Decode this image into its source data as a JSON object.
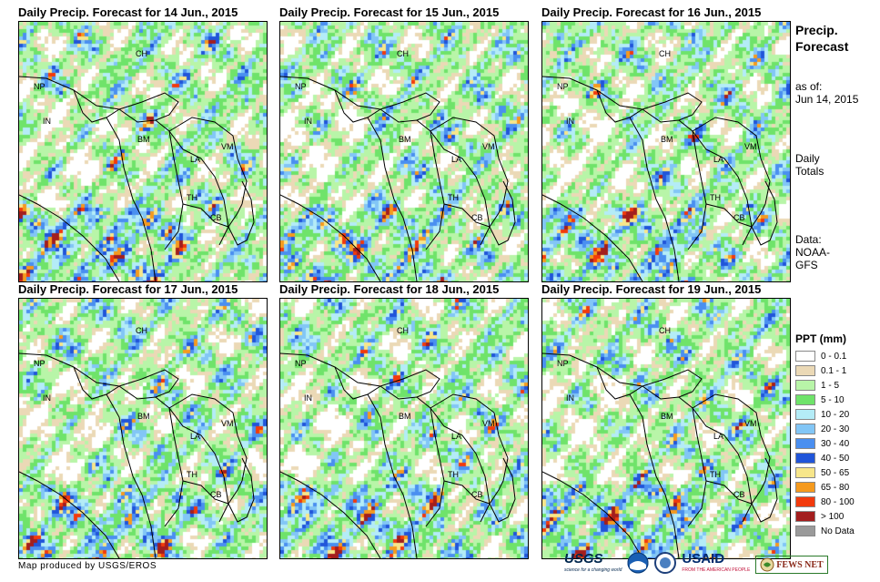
{
  "panels": [
    {
      "title": "Daily Precip. Forecast for 14 Jun., 2015",
      "seed": 11,
      "wet": 0.6
    },
    {
      "title": "Daily Precip. Forecast for 15 Jun., 2015",
      "seed": 23,
      "wet": 0.45
    },
    {
      "title": "Daily Precip. Forecast for 16 Jun., 2015",
      "seed": 37,
      "wet": 0.5
    },
    {
      "title": "Daily Precip. Forecast for 17 Jun., 2015",
      "seed": 41,
      "wet": 0.45
    },
    {
      "title": "Daily Precip. Forecast for 18 Jun., 2015",
      "seed": 53,
      "wet": 0.5
    },
    {
      "title": "Daily Precip. Forecast for 19 Jun., 2015",
      "seed": 67,
      "wet": 0.55
    }
  ],
  "country_labels": [
    "CH",
    "NP",
    "IN",
    "BM",
    "LA",
    "VM",
    "TH",
    "CB"
  ],
  "sidebar": {
    "title_line1": "Precip.",
    "title_line2": "Forecast",
    "asof_line1": "as of:",
    "asof_line2": "Jun 14, 2015",
    "totals_line1": "Daily",
    "totals_line2": "Totals",
    "data_line1": "Data:",
    "data_line2": "NOAA-",
    "data_line3": "GFS"
  },
  "legend": {
    "title": "PPT (mm)",
    "items": [
      {
        "label": "0 - 0.1",
        "color": "#ffffff"
      },
      {
        "label": "0.1 - 1",
        "color": "#ebd9b6"
      },
      {
        "label": "1 - 5",
        "color": "#b8f5a8"
      },
      {
        "label": "5 - 10",
        "color": "#6fe36a"
      },
      {
        "label": "10 - 20",
        "color": "#b4ecf7"
      },
      {
        "label": "20 - 30",
        "color": "#82c6f6"
      },
      {
        "label": "30 - 40",
        "color": "#4a8ff0"
      },
      {
        "label": "40 - 50",
        "color": "#2155d9"
      },
      {
        "label": "50 - 65",
        "color": "#f7e68a"
      },
      {
        "label": "65 - 80",
        "color": "#f59a1e"
      },
      {
        "label": "80 - 100",
        "color": "#f23a0c"
      },
      {
        "label": "> 100",
        "color": "#a31e1e"
      },
      {
        "label": "No Data",
        "color": "#9a9a9a"
      }
    ]
  },
  "footer": {
    "credit": "Map produced by USGS/EROS"
  },
  "logos": {
    "usgs": "USGS",
    "usgs_sub": "science for a changing world",
    "usaid": "USAID",
    "usaid_sub": "FROM THE AMERICAN PEOPLE",
    "fewsnet": "FEWS NET"
  }
}
